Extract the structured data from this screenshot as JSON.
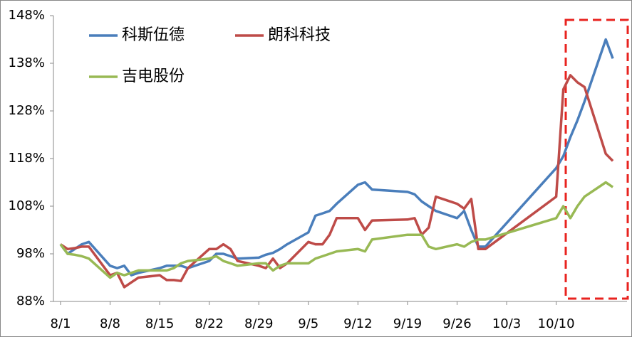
{
  "chart_data": {
    "type": "line",
    "x": [
      "8/1",
      "8/2",
      "8/3",
      "8/4",
      "8/5",
      "8/8",
      "8/9",
      "8/10",
      "8/11",
      "8/12",
      "8/15",
      "8/16",
      "8/17",
      "8/18",
      "8/19",
      "8/22",
      "8/23",
      "8/24",
      "8/25",
      "8/26",
      "8/29",
      "8/30",
      "8/31",
      "9/1",
      "9/2",
      "9/5",
      "9/6",
      "9/7",
      "9/8",
      "9/9",
      "9/12",
      "9/13",
      "9/14",
      "9/19",
      "9/20",
      "9/21",
      "9/22",
      "9/23",
      "9/26",
      "9/27",
      "9/28",
      "9/29",
      "9/30",
      "10/10",
      "10/11",
      "10/12",
      "10/13",
      "10/14",
      "10/17",
      "10/18"
    ],
    "series": [
      {
        "name": "科斯伍德",
        "color": "#4a7ebb",
        "values": [
          100,
          98,
          99,
          100,
          100.5,
          95.5,
          95,
          95.5,
          93.5,
          94,
          95,
          95.5,
          95.5,
          95.5,
          95,
          96.5,
          98,
          98,
          97.5,
          97,
          97.2,
          97.8,
          98.2,
          99,
          100,
          102.5,
          106,
          106.5,
          107,
          108.5,
          112.5,
          113,
          111.5,
          111,
          110.5,
          109,
          108,
          107,
          105.5,
          107,
          103,
          99.5,
          99.5,
          116,
          118.5,
          122.5,
          126,
          130,
          143,
          139
        ]
      },
      {
        "name": "朗科科技",
        "color": "#be4b48",
        "values": [
          100,
          99,
          99.2,
          99.5,
          99.5,
          93.5,
          94,
          91,
          92,
          93,
          93.5,
          92.5,
          92.5,
          92.3,
          95,
          99,
          99,
          100,
          99,
          96.5,
          95.5,
          95,
          97,
          95,
          96,
          100.5,
          100,
          100,
          102,
          105.5,
          105.5,
          103,
          105,
          105.2,
          105.5,
          102,
          103.5,
          110,
          108.5,
          107.5,
          109.5,
          99,
          99,
          110,
          132.5,
          135.5,
          134,
          133,
          119,
          117.5
        ]
      },
      {
        "name": "吉电股份",
        "color": "#98b954",
        "values": [
          100,
          98,
          97.8,
          97.5,
          97,
          93,
          94,
          93.5,
          94,
          94.5,
          94.5,
          94.5,
          95,
          96,
          96.5,
          97,
          97.5,
          96.5,
          96,
          95.5,
          96,
          96,
          94.5,
          95.5,
          96,
          96,
          97,
          97.5,
          98,
          98.5,
          99,
          98.5,
          101,
          102,
          102,
          102,
          99.5,
          99,
          100,
          99.5,
          100.5,
          101,
          101,
          105.5,
          108,
          105.5,
          108,
          110,
          113,
          112
        ]
      }
    ],
    "xlim": [
      "7/31",
      "10/20"
    ],
    "xticks": [
      "8/1",
      "8/8",
      "8/15",
      "8/22",
      "8/29",
      "9/5",
      "9/12",
      "9/19",
      "9/26",
      "10/3",
      "10/10"
    ],
    "ylim": [
      88,
      148
    ],
    "yticks": [
      {
        "value": 88,
        "label": "88%"
      },
      {
        "value": 98,
        "label": "98%"
      },
      {
        "value": 108,
        "label": "108%"
      },
      {
        "value": 118,
        "label": "118%"
      },
      {
        "value": 128,
        "label": "128%"
      },
      {
        "value": 138,
        "label": "138%"
      },
      {
        "value": 148,
        "label": "148%"
      }
    ],
    "legend": "top-left"
  }
}
